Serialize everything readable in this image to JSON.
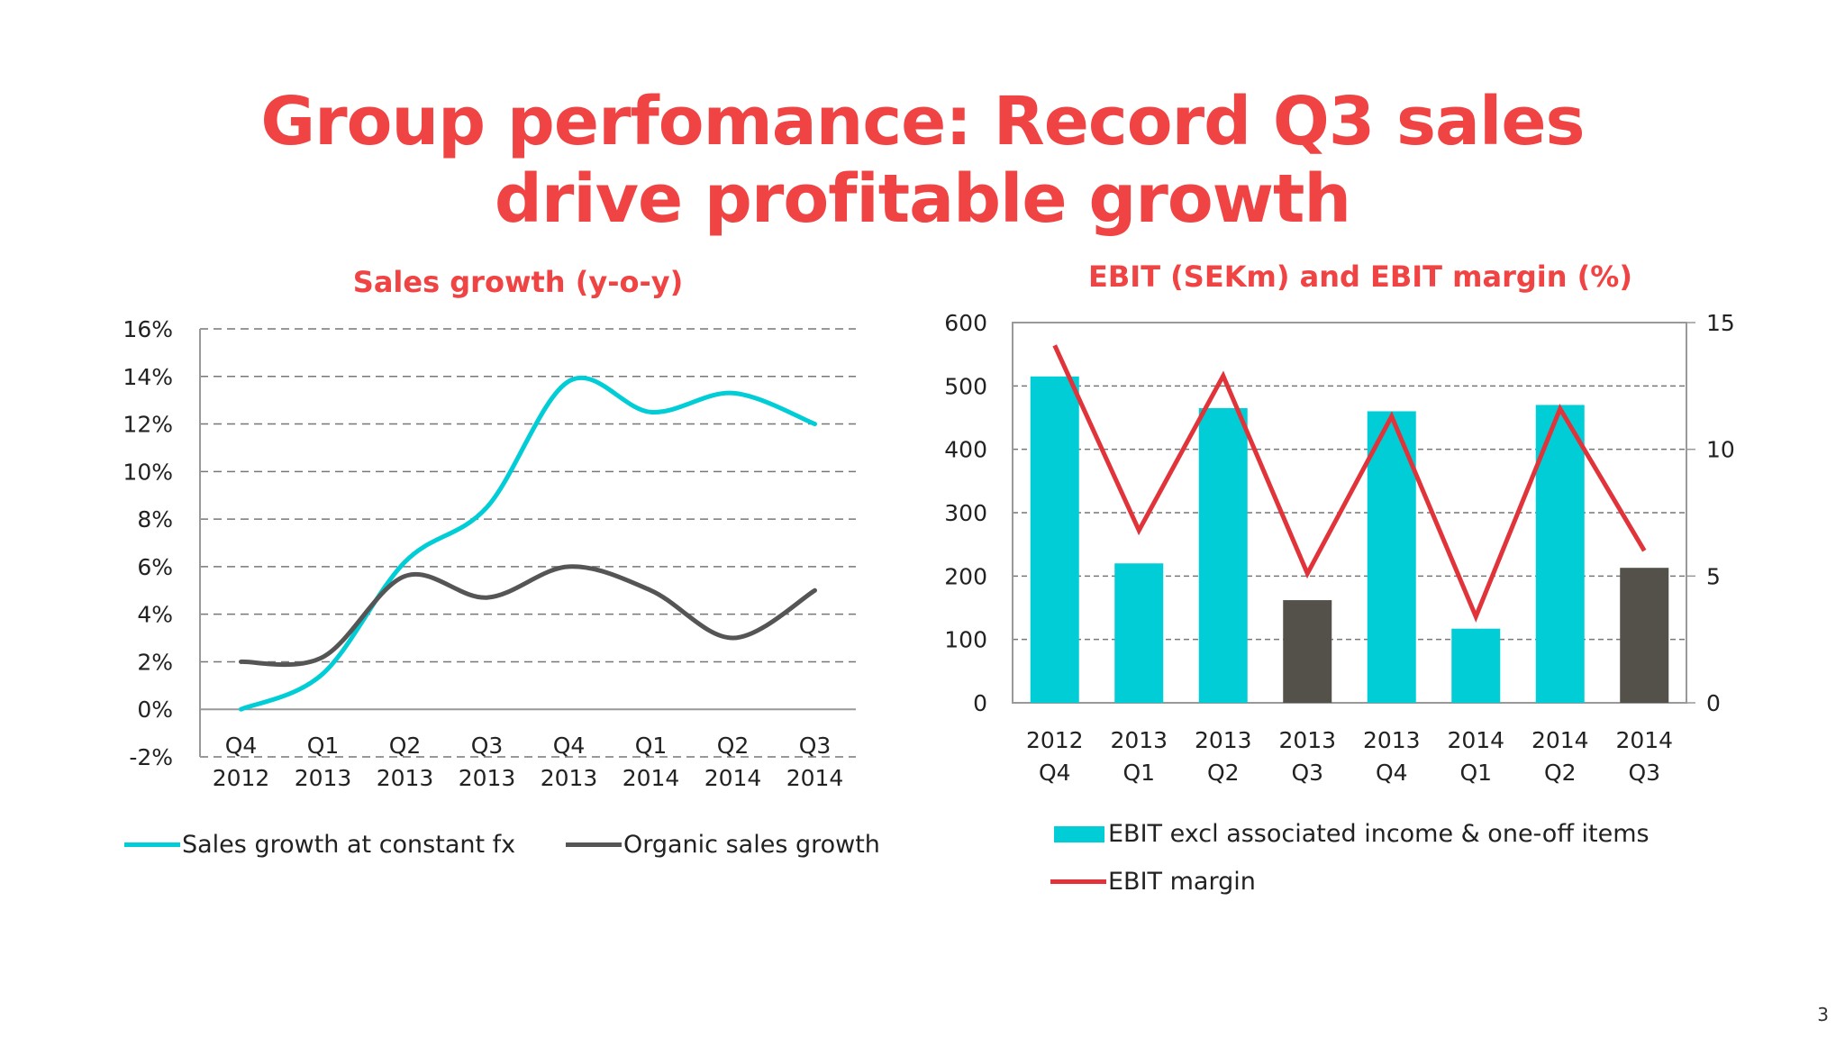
{
  "slide": {
    "title_line1": "Group perfomance: Record Q3 sales",
    "title_line2": "drive profitable growth",
    "page_number": "3"
  },
  "colors": {
    "accent": "#f04343",
    "cyan": "#00cdd6",
    "dark": "#54514a",
    "red_line": "#e0343a"
  },
  "chart_data": [
    {
      "type": "line",
      "title": "Sales growth (y-o-y)",
      "categories": [
        [
          "Q4",
          "2012"
        ],
        [
          "Q1",
          "2013"
        ],
        [
          "Q2",
          "2013"
        ],
        [
          "Q3",
          "2013"
        ],
        [
          "Q4",
          "2013"
        ],
        [
          "Q1",
          "2014"
        ],
        [
          "Q2",
          "2014"
        ],
        [
          "Q3",
          "2014"
        ]
      ],
      "y_ticks": [
        "16%",
        "14%",
        "12%",
        "10%",
        "8%",
        "6%",
        "4%",
        "2%",
        "0%",
        "-2%"
      ],
      "ylim": [
        -2,
        16
      ],
      "grid": true,
      "legend_position": "bottom",
      "series": [
        {
          "name": "Sales growth at constant fx",
          "color": "#00cdd6",
          "values": [
            0,
            1.5,
            6.2,
            8.5,
            13.8,
            12.5,
            13.3,
            12
          ]
        },
        {
          "name": "Organic sales growth",
          "color": "#555555",
          "values": [
            2,
            2.2,
            5.6,
            4.7,
            6.0,
            5.0,
            3.0,
            5.0
          ]
        }
      ]
    },
    {
      "type": "bar",
      "title": "EBIT (SEKm) and EBIT margin (%)",
      "categories": [
        [
          "2012",
          "Q4"
        ],
        [
          "2013",
          "Q1"
        ],
        [
          "2013",
          "Q2"
        ],
        [
          "2013",
          "Q3"
        ],
        [
          "2013",
          "Q4"
        ],
        [
          "2014",
          "Q1"
        ],
        [
          "2014",
          "Q2"
        ],
        [
          "2014",
          "Q3"
        ]
      ],
      "y_ticks": [
        "600",
        "500",
        "400",
        "300",
        "200",
        "100",
        "0"
      ],
      "y2_ticks": [
        "15",
        "10",
        "5",
        "0"
      ],
      "ylim": [
        0,
        600
      ],
      "y2lim": [
        0,
        15
      ],
      "grid": true,
      "legend_position": "bottom",
      "series": [
        {
          "name": "EBIT excl associated income & one-off items",
          "color": "#00cdd6",
          "highlight_color": "#54514a",
          "highlight_indices": [
            3,
            7
          ],
          "values": [
            515,
            220,
            465,
            162,
            460,
            117,
            470,
            213
          ]
        },
        {
          "name": "EBIT margin",
          "color": "#e0343a",
          "axis": "right",
          "values": [
            14.1,
            6.8,
            12.9,
            5.1,
            11.3,
            3.4,
            11.6,
            6.0
          ]
        }
      ]
    }
  ]
}
